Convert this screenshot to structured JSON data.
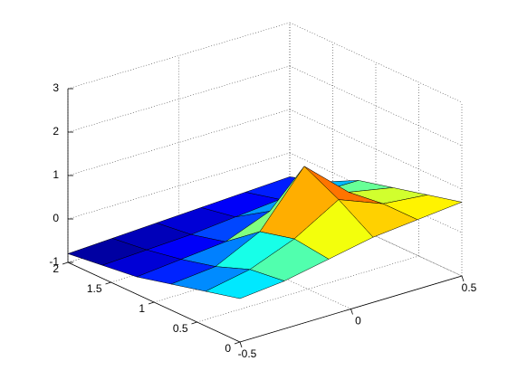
{
  "chart_data": {
    "type": "surface",
    "x": [
      -0.5,
      -0.3,
      -0.1,
      0.1,
      0.3,
      0.5
    ],
    "y": [
      0,
      0.4,
      0.8,
      1.2,
      1.6,
      2
    ],
    "z": [
      [
        0.0,
        0.1,
        0.3,
        0.5,
        0.6,
        0.7
      ],
      [
        -0.2,
        0.0,
        0.4,
        1.0,
        0.6,
        0.5
      ],
      [
        -0.4,
        -0.3,
        0.2,
        1.4,
        0.5,
        0.3
      ],
      [
        -0.6,
        -0.5,
        -0.4,
        0.0,
        0.1,
        0.1
      ],
      [
        -0.7,
        -0.65,
        -0.6,
        -0.5,
        -0.4,
        -0.3
      ],
      [
        -0.8,
        -0.75,
        -0.7,
        -0.65,
        -0.6,
        -0.55
      ]
    ],
    "xlim": [
      -0.5,
      0.5
    ],
    "ylim": [
      0,
      2
    ],
    "zlim": [
      -1,
      3
    ],
    "xticks": [
      -0.5,
      0,
      0.5
    ],
    "yticks": [
      0,
      0.5,
      1,
      1.5,
      2
    ],
    "zticks": [
      -1,
      0,
      1,
      2,
      3
    ],
    "grid": true,
    "colormap": "jet"
  }
}
